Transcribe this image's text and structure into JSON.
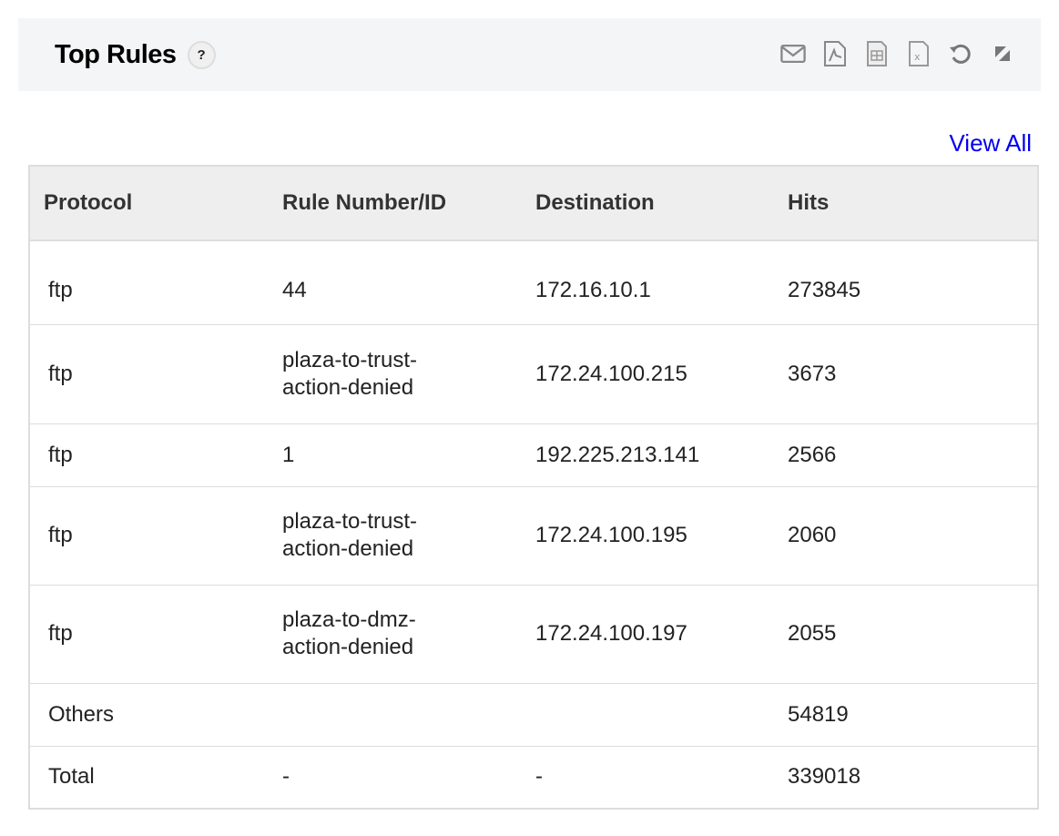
{
  "header": {
    "title": "Top Rules",
    "help": "?",
    "icons": [
      "mail-icon",
      "pdf-icon",
      "csv-icon",
      "excel-icon",
      "refresh-icon",
      "expand-icon"
    ]
  },
  "view_all": "View All",
  "table": {
    "columns": [
      "Protocol",
      "Rule Number/ID",
      "Destination",
      "Hits"
    ],
    "rows": [
      [
        "ftp",
        "44",
        "172.16.10.1",
        "273845"
      ],
      [
        "ftp",
        "plaza-to-trust-action-denied",
        "172.24.100.215",
        "3673"
      ],
      [
        "ftp",
        "1",
        "192.225.213.141",
        "2566"
      ],
      [
        "ftp",
        "plaza-to-trust-action-denied",
        "172.24.100.195",
        "2060"
      ],
      [
        "ftp",
        "plaza-to-dmz-action-denied",
        "172.24.100.197",
        "2055"
      ],
      [
        "Others",
        "",
        "",
        "54819"
      ],
      [
        "Total",
        "-",
        "-",
        "339018"
      ]
    ]
  }
}
